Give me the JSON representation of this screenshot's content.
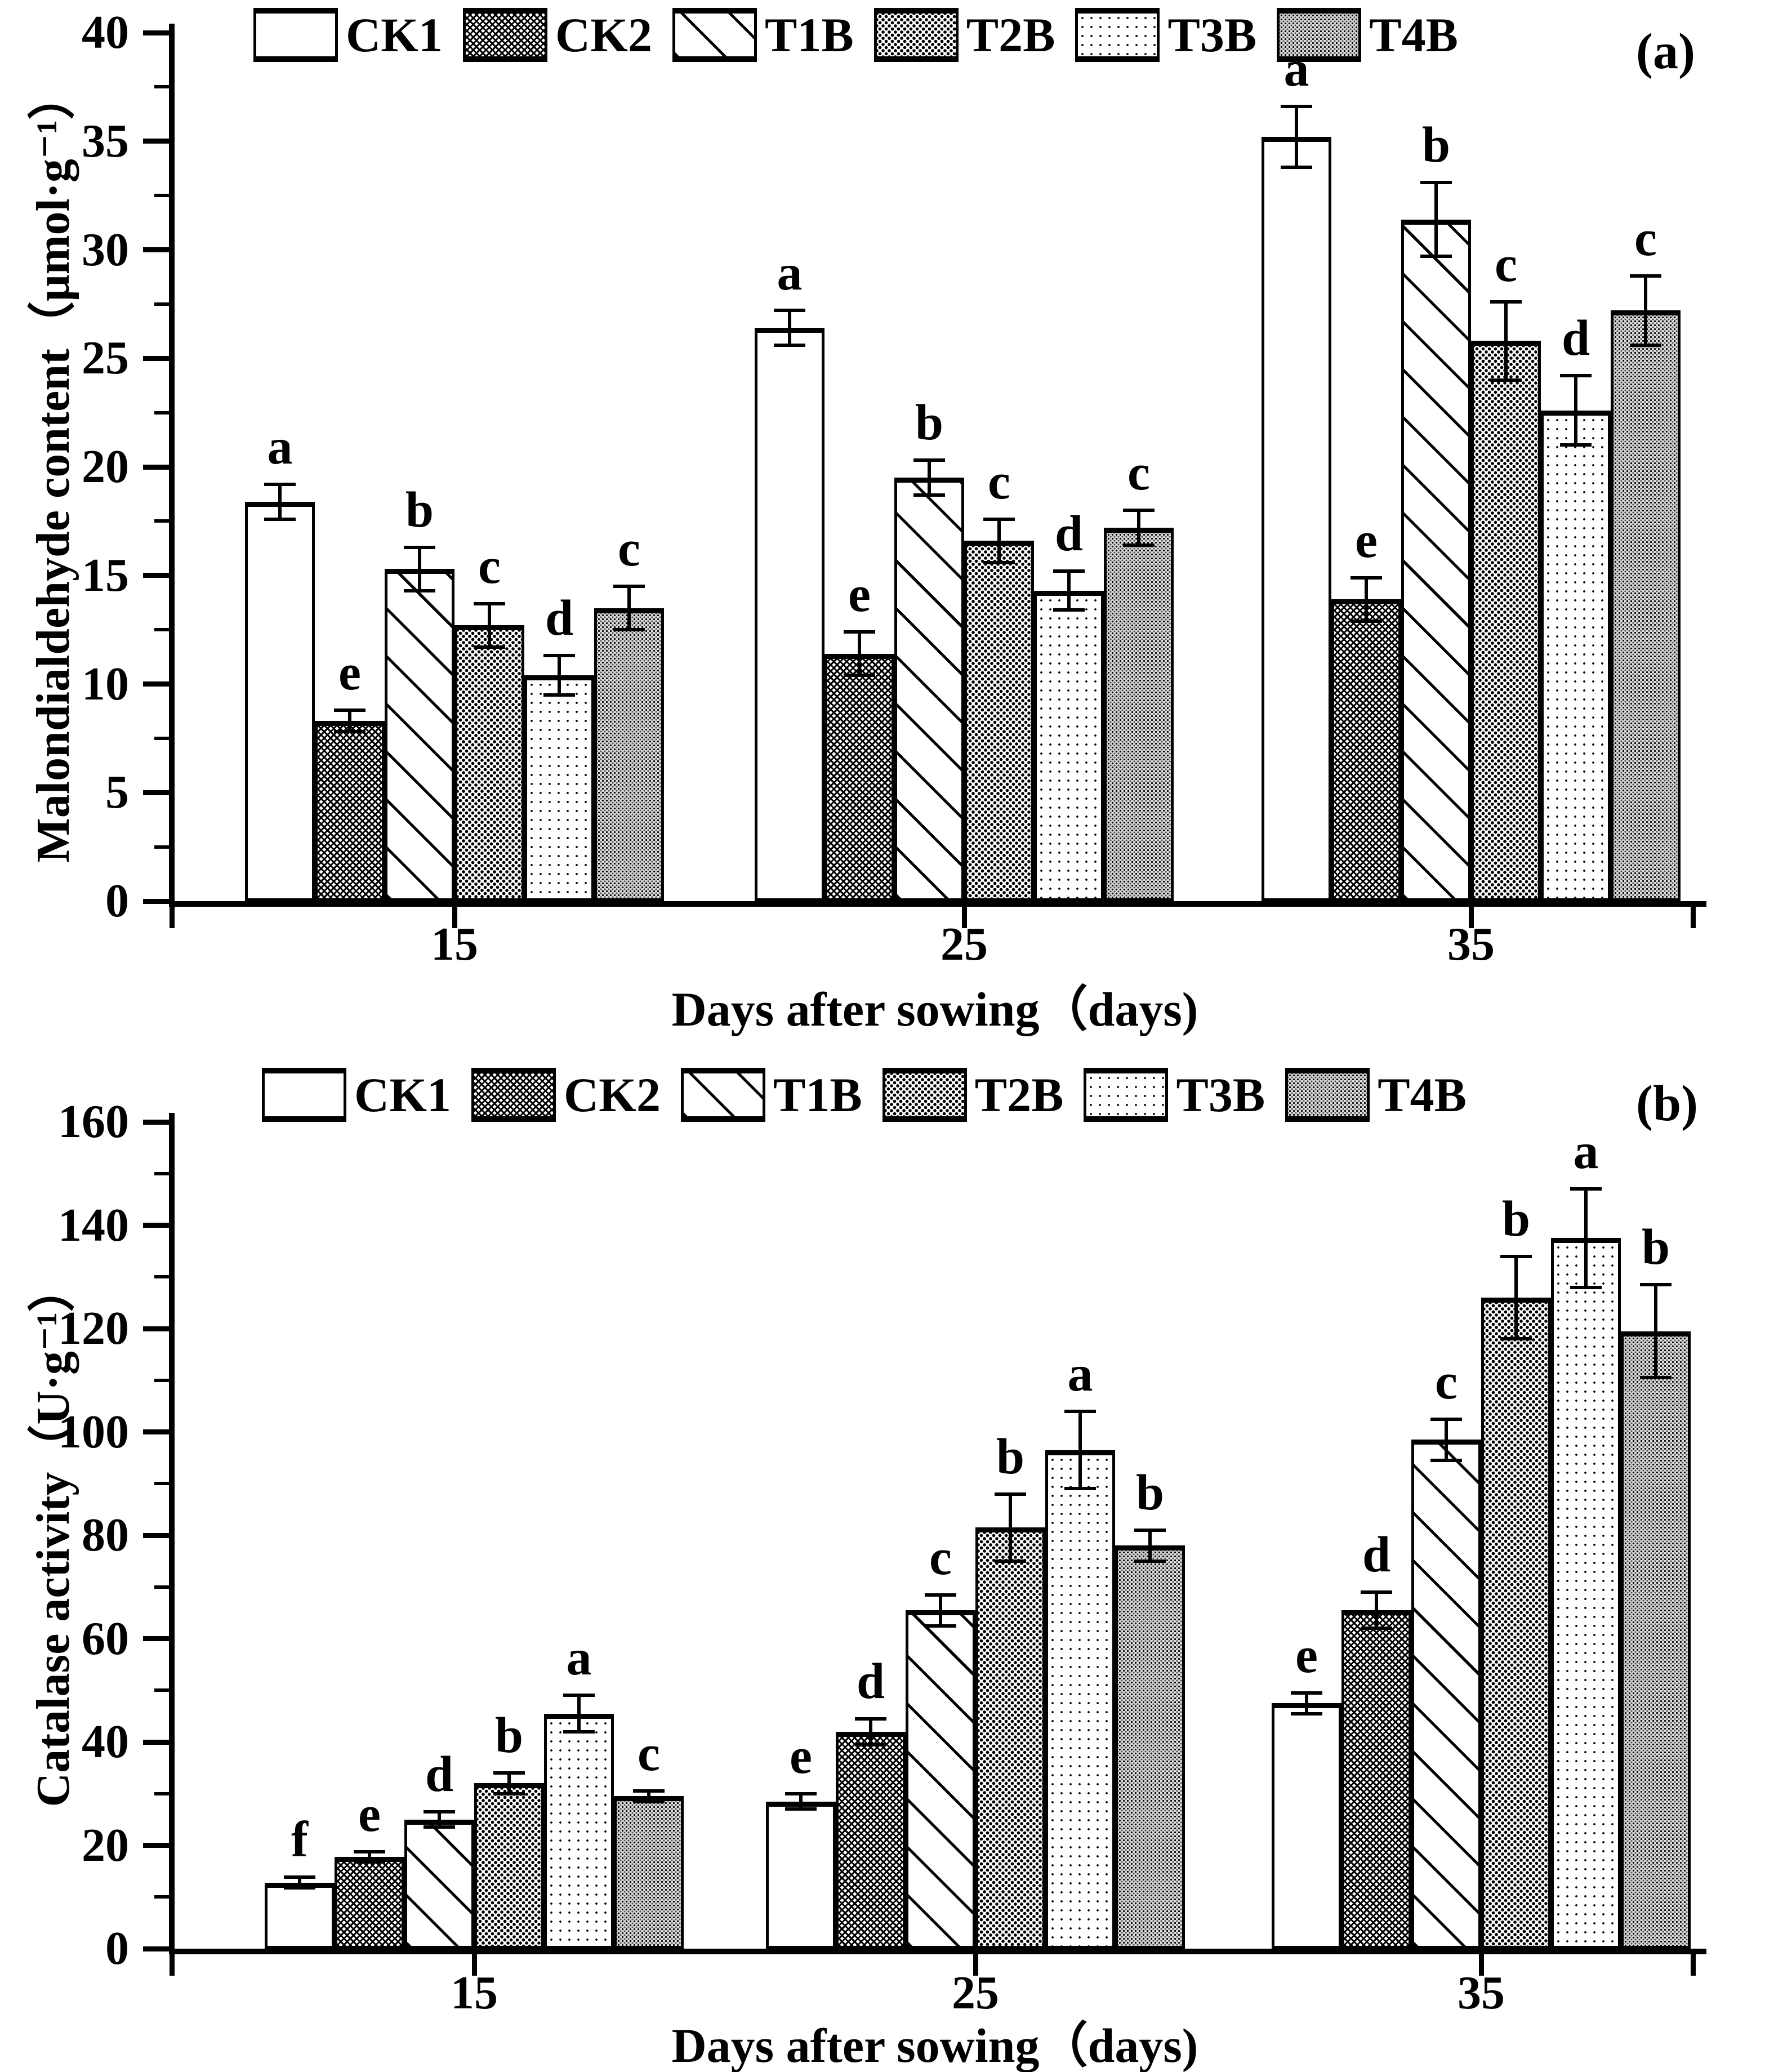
{
  "figure": {
    "background": "#ffffff",
    "ink_color": "#000000",
    "panel_labels": [
      "(a)",
      "(b)"
    ],
    "legend_labels": [
      "CK1",
      "CK2",
      "T1B",
      "T2B",
      "T3B",
      "T4B"
    ],
    "legend_swatches": [
      "blank-white-swatch",
      "dense-crosshatch-swatch",
      "diagonal-hatch-swatch",
      "dense-diamond-dot-swatch",
      "sparse-dot-swatch",
      "fine-stipple-gray-swatch"
    ]
  },
  "chart_data": [
    {
      "type": "bar",
      "panel_label": "(a)",
      "title": "",
      "xlabel": "Days after sowing（days)",
      "ylabel": "Malondialdehyde content（μmol·g⁻¹）",
      "ylim": [
        0,
        40
      ],
      "ytick_labels": [
        "0",
        "5",
        "10",
        "15",
        "20",
        "25",
        "30",
        "35",
        "40"
      ],
      "ytick_major_step": 5,
      "ytick_minor_step": 2.5,
      "categories": [
        "15",
        "25",
        "35"
      ],
      "grid": false,
      "legend_position": "top",
      "error_bars": true,
      "series": [
        {
          "name": "CK1",
          "pattern": "ck1",
          "values": [
            18.4,
            26.4,
            35.2
          ],
          "errors": [
            0.8,
            0.8,
            1.4
          ],
          "letters": [
            "a",
            "a",
            "a"
          ]
        },
        {
          "name": "CK2",
          "pattern": "ck2",
          "values": [
            8.3,
            11.4,
            13.9
          ],
          "errors": [
            0.5,
            1.0,
            1.0
          ],
          "letters": [
            "e",
            "e",
            "e"
          ]
        },
        {
          "name": "T1B",
          "pattern": "t1b",
          "values": [
            15.3,
            19.5,
            31.4
          ],
          "errors": [
            1.0,
            0.8,
            1.7
          ],
          "letters": [
            "b",
            "b",
            "b"
          ]
        },
        {
          "name": "T2B",
          "pattern": "t2b",
          "values": [
            12.7,
            16.6,
            25.8
          ],
          "errors": [
            1.0,
            1.0,
            1.8
          ],
          "letters": [
            "c",
            "c",
            "c"
          ]
        },
        {
          "name": "T3B",
          "pattern": "t3b",
          "values": [
            10.4,
            14.3,
            22.6
          ],
          "errors": [
            0.9,
            0.9,
            1.6
          ],
          "letters": [
            "d",
            "d",
            "d"
          ]
        },
        {
          "name": "T4B",
          "pattern": "t4b",
          "values": [
            13.5,
            17.2,
            27.2
          ],
          "errors": [
            1.0,
            0.8,
            1.6
          ],
          "letters": [
            "c",
            "c",
            "c"
          ]
        }
      ]
    },
    {
      "type": "bar",
      "panel_label": "(b)",
      "title": "",
      "xlabel": "Days after sowing（days)",
      "ylabel": "Catalase activity（U·g⁻¹）",
      "ylim": [
        0,
        160
      ],
      "ytick_labels": [
        "0",
        "20",
        "40",
        "60",
        "80",
        "100",
        "120",
        "140",
        "160"
      ],
      "ytick_major_step": 20,
      "ytick_minor_step": 10,
      "categories": [
        "15",
        "25",
        "35"
      ],
      "grid": false,
      "legend_position": "top",
      "error_bars": true,
      "series": [
        {
          "name": "CK1",
          "pattern": "ck1",
          "values": [
            12.8,
            28.5,
            47.5
          ],
          "errors": [
            1.0,
            1.5,
            2.0
          ],
          "letters": [
            "f",
            "e",
            "e"
          ]
        },
        {
          "name": "CK2",
          "pattern": "ck2",
          "values": [
            17.8,
            42.0,
            65.5
          ],
          "errors": [
            1.0,
            2.5,
            3.5
          ],
          "letters": [
            "e",
            "d",
            "d"
          ]
        },
        {
          "name": "T1B",
          "pattern": "t1b",
          "values": [
            25.0,
            65.5,
            98.5
          ],
          "errors": [
            1.5,
            3.0,
            4.0
          ],
          "letters": [
            "d",
            "c",
            "c"
          ]
        },
        {
          "name": "T2B",
          "pattern": "t2b",
          "values": [
            32.0,
            81.5,
            126.0
          ],
          "errors": [
            2.0,
            6.5,
            8.0
          ],
          "letters": [
            "b",
            "b",
            "b"
          ]
        },
        {
          "name": "T3B",
          "pattern": "t3b",
          "values": [
            45.5,
            96.5,
            137.5
          ],
          "errors": [
            3.5,
            7.5,
            9.5
          ],
          "letters": [
            "a",
            "a",
            "a"
          ]
        },
        {
          "name": "T4B",
          "pattern": "t4b",
          "values": [
            29.5,
            78.0,
            119.5
          ],
          "errors": [
            1.0,
            3.0,
            9.0
          ],
          "letters": [
            "c",
            "b",
            "b"
          ]
        }
      ]
    }
  ]
}
